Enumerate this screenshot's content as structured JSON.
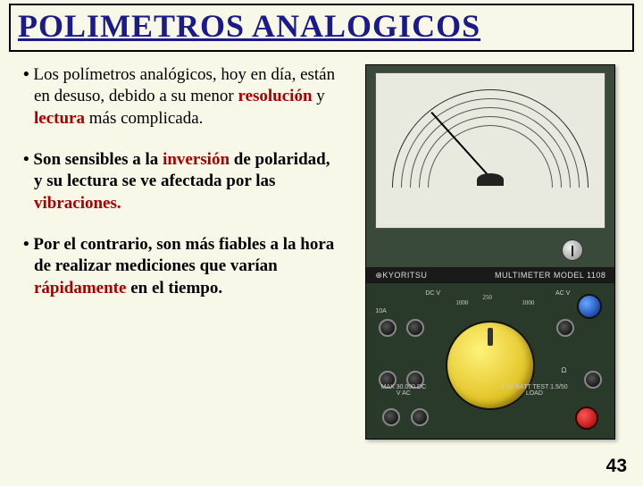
{
  "title": "POLIMETROS ANALOGICOS",
  "bullets": [
    {
      "pre": "Los polímetros analógicos, hoy en día, están en desuso, debido a su menor ",
      "hl1": "resolución",
      "mid1": " y ",
      "hl2": "lectura",
      "post": " más complicada."
    },
    {
      "pre": "Son sensibles a la ",
      "hl1": "inversión",
      "mid1": " de polaridad, y su lectura se ve afectada por las ",
      "hl2": "vibraciones.",
      "post": ""
    },
    {
      "pre": "Por el contrario, son más fiables a la hora de realizar mediciones que varían ",
      "hl1": "rápidamente",
      "mid1": " en el tiempo.",
      "hl2": "",
      "post": ""
    }
  ],
  "device": {
    "brand": "⊕KYORITSU",
    "model": "MULTIMETER MODEL 1108",
    "labels": {
      "dcv": "DC V",
      "acv": "AC V",
      "tenA": "10A",
      "ohm": "Ω",
      "batt": "1.5V BATT TEST\n1.5/50 LOAD",
      "max": "MAX 30.000\nDC V AC",
      "s1": "1000",
      "s2": "250",
      "s3": "1000"
    }
  },
  "page": "43"
}
